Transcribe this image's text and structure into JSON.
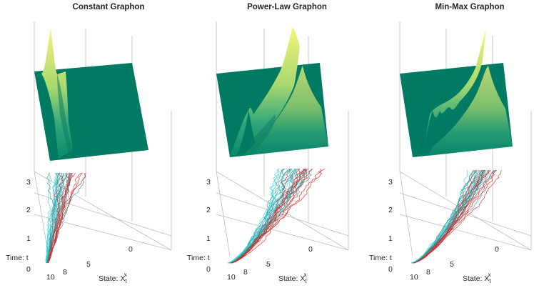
{
  "chart_data": [
    {
      "type": "area",
      "title": "Constant Graphon",
      "xlabel": "State: X",
      "xlabel_sub": "t",
      "xlabel_sup": "x",
      "ylabel": "Time: t",
      "x_ticks": [
        "10",
        "8",
        "5",
        "0"
      ],
      "t_ticks": [
        "0",
        "1",
        "2",
        "3"
      ],
      "xlim": [
        10,
        0
      ],
      "tlim": [
        0,
        3
      ],
      "density_peak_state": 8,
      "trajectory_spread": "narrow",
      "drift": "none",
      "colors": {
        "surface_low": "#007a62",
        "surface_high": "#f5f57a",
        "path_a": "#e31a1c",
        "path_b": "#29d3dd",
        "path_c": "#3d8c8a"
      }
    },
    {
      "type": "area",
      "title": "Power-Law Graphon",
      "xlabel": "State: X",
      "xlabel_sub": "t",
      "xlabel_sup": "x",
      "ylabel": "Time: t",
      "x_ticks": [
        "10",
        "8",
        "5",
        "0"
      ],
      "t_ticks": [
        "0",
        "1",
        "2",
        "3"
      ],
      "xlim": [
        10,
        0
      ],
      "tlim": [
        0,
        3
      ],
      "density_peak_state": 4,
      "trajectory_spread": "wide",
      "drift": "toward lower states",
      "colors": {
        "surface_low": "#007a62",
        "surface_high": "#f5f57a",
        "path_a": "#e31a1c",
        "path_b": "#29d3dd",
        "path_c": "#3d8c8a"
      }
    },
    {
      "type": "area",
      "title": "Min-Max Graphon",
      "xlabel": "State: X",
      "xlabel_sub": "t",
      "xlabel_sup": "x",
      "ylabel": "Time: t",
      "x_ticks": [
        "10",
        "8",
        "5",
        "0"
      ],
      "t_ticks": [
        "0",
        "1",
        "2",
        "3"
      ],
      "xlim": [
        10,
        0
      ],
      "tlim": [
        0,
        3
      ],
      "density_peak_state": 4,
      "trajectory_spread": "medium",
      "drift": "toward lower states",
      "colors": {
        "surface_low": "#007a62",
        "surface_high": "#f5f57a",
        "path_a": "#e31a1c",
        "path_b": "#29d3dd",
        "path_c": "#3d8c8a"
      }
    }
  ]
}
